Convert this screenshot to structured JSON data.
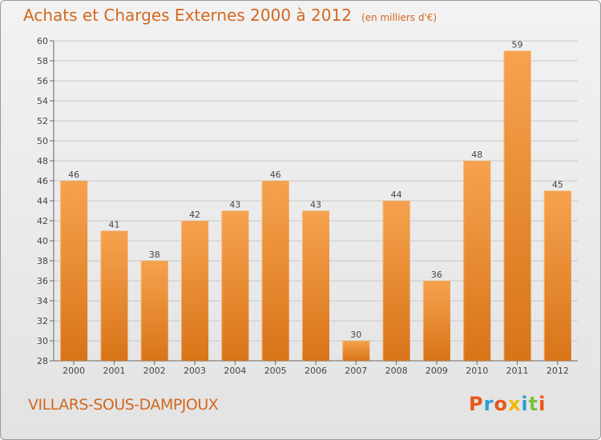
{
  "header": {
    "title": "Achats et Charges Externes 2000 à 2012",
    "unit": "(en milliers d'€)"
  },
  "footer": {
    "location": "VILLARS-SOUS-DAMPJOUX",
    "brand": "Proxiti",
    "brand_colors": [
      "#e8571a",
      "#2a9fd6",
      "#e8571a",
      "#f2b700",
      "#2a9fd6",
      "#7fbf3f",
      "#e8571a"
    ]
  },
  "colors": {
    "bar_top": "#f6a24e",
    "bar_bottom": "#d87418",
    "bar_edge": "#ffc891",
    "accent": "#d2691e",
    "grid": "#c8c8c8"
  },
  "chart_data": {
    "type": "bar",
    "title": "Achats et Charges Externes 2000 à 2012",
    "subtitle": "(en milliers d'€)",
    "xlabel": "",
    "ylabel": "",
    "categories": [
      "2000",
      "2001",
      "2002",
      "2003",
      "2004",
      "2005",
      "2006",
      "2007",
      "2008",
      "2009",
      "2010",
      "2011",
      "2012"
    ],
    "values": [
      46,
      41,
      38,
      42,
      43,
      46,
      43,
      30,
      44,
      36,
      48,
      59,
      45
    ],
    "ylim": [
      28,
      60
    ],
    "yticks": [
      28,
      30,
      32,
      34,
      36,
      38,
      40,
      42,
      44,
      46,
      48,
      50,
      52,
      54,
      56,
      58,
      60
    ],
    "grid": true,
    "legend": "none",
    "data_labels": true
  }
}
